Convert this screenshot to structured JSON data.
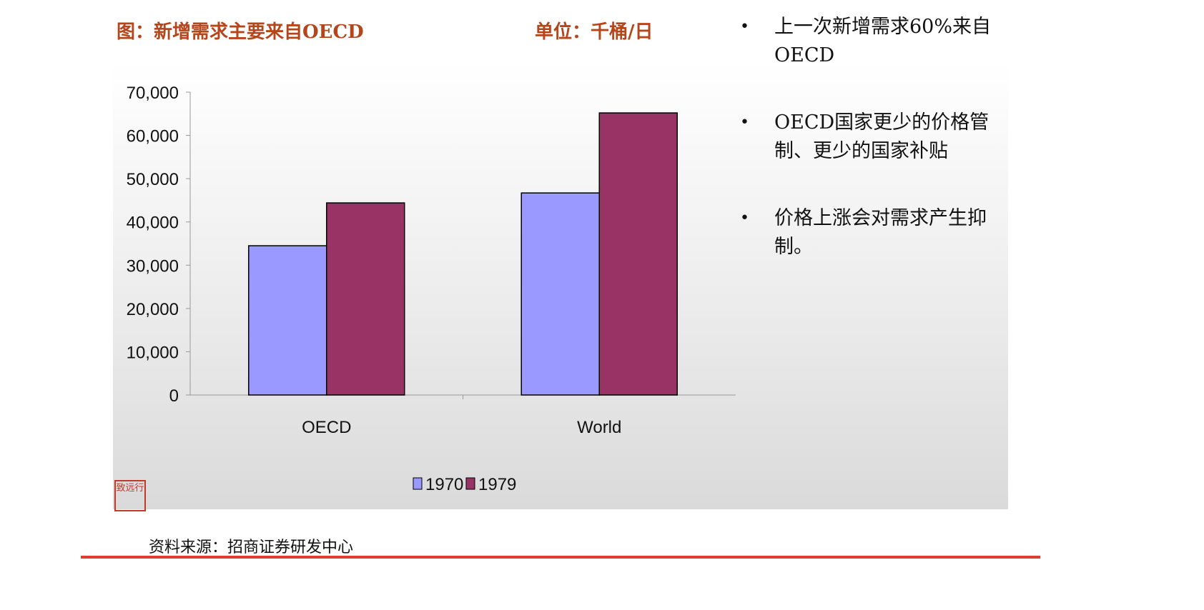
{
  "chart_title": "图：新增需求主要来自OECD",
  "unit_label": "单位：千桶/日",
  "bullets": [
    "上一次新增需求60%来自OECD",
    "OECD国家更少的价格管制、更少的国家补贴",
    "价格上涨会对需求产生抑制。"
  ],
  "source": "资料来源：招商证券研发中心",
  "seal_text": "致远行",
  "chart_data": {
    "type": "bar",
    "categories": [
      "OECD",
      "World"
    ],
    "series": [
      {
        "name": "1970",
        "values": [
          34500,
          46700
        ],
        "color": "#9999ff"
      },
      {
        "name": "1979",
        "values": [
          44400,
          65200
        ],
        "color": "#993366"
      }
    ],
    "ylim": [
      0,
      70000
    ],
    "yticks": [
      "0",
      "10,000",
      "20,000",
      "30,000",
      "40,000",
      "50,000",
      "60,000",
      "70,000"
    ],
    "grid": false,
    "legend": "bottom"
  }
}
